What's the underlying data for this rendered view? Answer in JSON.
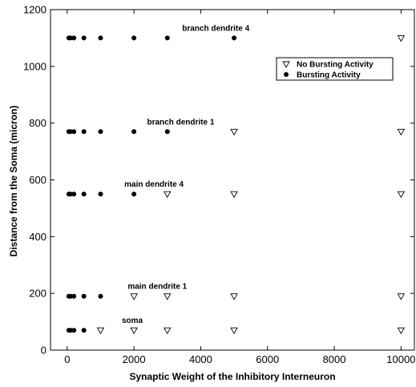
{
  "chart_data": {
    "type": "scatter",
    "title": "",
    "xlabel": "Synaptic Weight of the Inhibitory Interneuron",
    "ylabel": "Distance from the Soma (micron)",
    "xlim": [
      -500,
      10400
    ],
    "ylim": [
      0,
      1200
    ],
    "xticks": [
      0,
      2000,
      4000,
      6000,
      8000,
      10000
    ],
    "yticks": [
      0,
      200,
      400,
      600,
      800,
      1000,
      1200
    ],
    "grid": false,
    "legend_position": "top-right",
    "series": [
      {
        "name": "No Bursting Activity",
        "marker": "triangle-down-open",
        "points": [
          {
            "x": 1000,
            "y": 70
          },
          {
            "x": 2000,
            "y": 70
          },
          {
            "x": 3000,
            "y": 70
          },
          {
            "x": 5000,
            "y": 70
          },
          {
            "x": 10000,
            "y": 70
          },
          {
            "x": 2000,
            "y": 190
          },
          {
            "x": 3000,
            "y": 190
          },
          {
            "x": 5000,
            "y": 190
          },
          {
            "x": 10000,
            "y": 190
          },
          {
            "x": 3000,
            "y": 550
          },
          {
            "x": 5000,
            "y": 550
          },
          {
            "x": 10000,
            "y": 550
          },
          {
            "x": 5000,
            "y": 770
          },
          {
            "x": 10000,
            "y": 770
          },
          {
            "x": 10000,
            "y": 1100
          }
        ]
      },
      {
        "name": "Bursting Activity",
        "marker": "circle-filled",
        "points": [
          {
            "x": 50,
            "y": 70
          },
          {
            "x": 100,
            "y": 70
          },
          {
            "x": 200,
            "y": 70
          },
          {
            "x": 500,
            "y": 70
          },
          {
            "x": 50,
            "y": 190
          },
          {
            "x": 100,
            "y": 190
          },
          {
            "x": 200,
            "y": 190
          },
          {
            "x": 500,
            "y": 190
          },
          {
            "x": 1000,
            "y": 190
          },
          {
            "x": 50,
            "y": 550
          },
          {
            "x": 100,
            "y": 550
          },
          {
            "x": 200,
            "y": 550
          },
          {
            "x": 500,
            "y": 550
          },
          {
            "x": 1000,
            "y": 550
          },
          {
            "x": 2000,
            "y": 550
          },
          {
            "x": 50,
            "y": 770
          },
          {
            "x": 100,
            "y": 770
          },
          {
            "x": 200,
            "y": 770
          },
          {
            "x": 500,
            "y": 770
          },
          {
            "x": 1000,
            "y": 770
          },
          {
            "x": 2000,
            "y": 770
          },
          {
            "x": 3000,
            "y": 770
          },
          {
            "x": 50,
            "y": 1100
          },
          {
            "x": 100,
            "y": 1100
          },
          {
            "x": 200,
            "y": 1100
          },
          {
            "x": 500,
            "y": 1100
          },
          {
            "x": 1000,
            "y": 1100
          },
          {
            "x": 2000,
            "y": 1100
          },
          {
            "x": 3000,
            "y": 1100
          },
          {
            "x": 5000,
            "y": 1100
          }
        ]
      }
    ],
    "annotations": [
      {
        "text": "soma",
        "x": 1950,
        "y": 70
      },
      {
        "text": "main dendrite 1",
        "x": 2700,
        "y": 190
      },
      {
        "text": "main dendrite 4",
        "x": 2600,
        "y": 550
      },
      {
        "text": "branch dendrite 1",
        "x": 3400,
        "y": 770
      },
      {
        "text": "branch dendrite 4",
        "x": 4450,
        "y": 1100
      }
    ]
  }
}
